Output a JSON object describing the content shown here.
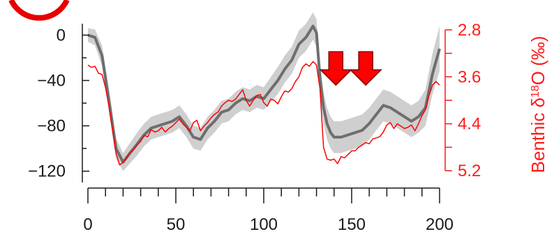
{
  "chart_data": {
    "type": "line",
    "x": {
      "ticks": [
        0,
        50,
        100,
        150,
        200
      ],
      "tick_labels": [
        "0",
        "50",
        "100",
        "150",
        "200"
      ],
      "range": [
        0,
        200
      ],
      "minor_step": 10
    },
    "y_left": {
      "ticks": [
        0,
        -40,
        -80,
        -120
      ],
      "tick_labels": [
        "0",
        "−40",
        "−80",
        "−120"
      ],
      "range": [
        -130,
        15
      ],
      "minor_step": 20
    },
    "y_right": {
      "label_prefix": "Benthic δ",
      "label_sup": "18",
      "label_suffix": "O (‰)",
      "ticks": [
        2.8,
        3.6,
        4.4,
        5.2
      ],
      "tick_labels": [
        "2.8",
        "3.6",
        "4.4",
        "5.2"
      ],
      "range": [
        2.6,
        5.4
      ],
      "reversed": true,
      "minor_step": 0.4
    },
    "series": [
      {
        "axis": "left",
        "color": "#6e6e6e",
        "band_color": "#cfcfcf",
        "points": [
          [
            0,
            0
          ],
          [
            4,
            -2
          ],
          [
            8,
            -18
          ],
          [
            12,
            -58
          ],
          [
            16,
            -100
          ],
          [
            20,
            -112
          ],
          [
            24,
            -104
          ],
          [
            28,
            -96
          ],
          [
            32,
            -88
          ],
          [
            36,
            -82
          ],
          [
            40,
            -80
          ],
          [
            44,
            -78
          ],
          [
            48,
            -76
          ],
          [
            52,
            -72
          ],
          [
            56,
            -80
          ],
          [
            60,
            -90
          ],
          [
            64,
            -92
          ],
          [
            68,
            -82
          ],
          [
            72,
            -76
          ],
          [
            76,
            -68
          ],
          [
            80,
            -66
          ],
          [
            84,
            -60
          ],
          [
            88,
            -56
          ],
          [
            92,
            -58
          ],
          [
            96,
            -54
          ],
          [
            100,
            -56
          ],
          [
            104,
            -48
          ],
          [
            108,
            -40
          ],
          [
            112,
            -30
          ],
          [
            116,
            -22
          ],
          [
            120,
            -8
          ],
          [
            124,
            -2
          ],
          [
            128,
            8
          ],
          [
            130,
            2
          ],
          [
            132,
            -38
          ],
          [
            134,
            -64
          ],
          [
            136,
            -78
          ],
          [
            138,
            -86
          ],
          [
            140,
            -90
          ],
          [
            144,
            -90
          ],
          [
            148,
            -88
          ],
          [
            152,
            -86
          ],
          [
            156,
            -84
          ],
          [
            160,
            -78
          ],
          [
            164,
            -70
          ],
          [
            168,
            -62
          ],
          [
            172,
            -64
          ],
          [
            176,
            -68
          ],
          [
            180,
            -72
          ],
          [
            184,
            -76
          ],
          [
            188,
            -72
          ],
          [
            192,
            -64
          ],
          [
            196,
            -34
          ],
          [
            200,
            -12
          ]
        ],
        "band_halfwidth": [
          6,
          7,
          9,
          10,
          9,
          8,
          9,
          10,
          10,
          10,
          10,
          10,
          10,
          10,
          10,
          10,
          10,
          10,
          10,
          10,
          10,
          10,
          10,
          10,
          10,
          10,
          11,
          12,
          12,
          12,
          12,
          12,
          12,
          12,
          14,
          14,
          14,
          14,
          14,
          14,
          14,
          14,
          14,
          14,
          14,
          14,
          14,
          14,
          14,
          14,
          14,
          16,
          18,
          20
        ]
      },
      {
        "axis": "right",
        "color": "#ff0000",
        "points": [
          [
            0,
            3.4
          ],
          [
            2,
            3.44
          ],
          [
            4,
            3.42
          ],
          [
            6,
            3.54
          ],
          [
            8,
            3.56
          ],
          [
            10,
            3.78
          ],
          [
            12,
            4.1
          ],
          [
            14,
            4.5
          ],
          [
            16,
            4.9
          ],
          [
            18,
            5.1
          ],
          [
            20,
            5.06
          ],
          [
            22,
            4.98
          ],
          [
            24,
            4.88
          ],
          [
            26,
            4.84
          ],
          [
            28,
            4.76
          ],
          [
            30,
            4.7
          ],
          [
            32,
            4.6
          ],
          [
            34,
            4.62
          ],
          [
            36,
            4.5
          ],
          [
            38,
            4.54
          ],
          [
            40,
            4.52
          ],
          [
            42,
            4.46
          ],
          [
            44,
            4.54
          ],
          [
            46,
            4.48
          ],
          [
            48,
            4.44
          ],
          [
            50,
            4.38
          ],
          [
            52,
            4.32
          ],
          [
            54,
            4.4
          ],
          [
            56,
            4.46
          ],
          [
            58,
            4.52
          ],
          [
            60,
            4.38
          ],
          [
            62,
            4.34
          ],
          [
            64,
            4.52
          ],
          [
            66,
            4.44
          ],
          [
            68,
            4.38
          ],
          [
            70,
            4.3
          ],
          [
            72,
            4.24
          ],
          [
            74,
            4.2
          ],
          [
            76,
            4.1
          ],
          [
            78,
            4.04
          ],
          [
            80,
            4.0
          ],
          [
            82,
            4.02
          ],
          [
            84,
            3.98
          ],
          [
            86,
            3.9
          ],
          [
            88,
            3.82
          ],
          [
            90,
            4.0
          ],
          [
            92,
            4.1
          ],
          [
            94,
            4.0
          ],
          [
            96,
            3.92
          ],
          [
            98,
            3.9
          ],
          [
            100,
            4.04
          ],
          [
            102,
            4.1
          ],
          [
            104,
            3.98
          ],
          [
            106,
            4.0
          ],
          [
            108,
            4.06
          ],
          [
            110,
            3.94
          ],
          [
            112,
            3.84
          ],
          [
            114,
            3.86
          ],
          [
            116,
            3.8
          ],
          [
            118,
            3.68
          ],
          [
            120,
            3.6
          ],
          [
            122,
            3.44
          ],
          [
            124,
            3.38
          ],
          [
            126,
            3.42
          ],
          [
            128,
            3.34
          ],
          [
            130,
            3.4
          ],
          [
            132,
            3.8
          ],
          [
            134,
            4.8
          ],
          [
            136,
            5.0
          ],
          [
            138,
            5.02
          ],
          [
            140,
            5.0
          ],
          [
            142,
            5.08
          ],
          [
            144,
            4.96
          ],
          [
            146,
            4.98
          ],
          [
            148,
            4.92
          ],
          [
            150,
            4.86
          ],
          [
            152,
            4.86
          ],
          [
            154,
            4.8
          ],
          [
            156,
            4.76
          ],
          [
            158,
            4.72
          ],
          [
            160,
            4.74
          ],
          [
            162,
            4.66
          ],
          [
            164,
            4.64
          ],
          [
            166,
            4.62
          ],
          [
            168,
            4.54
          ],
          [
            170,
            4.42
          ],
          [
            172,
            4.38
          ],
          [
            174,
            4.48
          ],
          [
            176,
            4.4
          ],
          [
            178,
            4.44
          ],
          [
            180,
            4.48
          ],
          [
            182,
            4.46
          ],
          [
            184,
            4.42
          ],
          [
            186,
            4.52
          ],
          [
            188,
            4.4
          ],
          [
            190,
            4.26
          ],
          [
            192,
            4.16
          ],
          [
            194,
            3.92
          ],
          [
            196,
            3.74
          ],
          [
            198,
            3.68
          ],
          [
            200,
            3.74
          ]
        ]
      }
    ],
    "annotations": [
      {
        "type": "arrow-down",
        "x": 141,
        "y_top": -22,
        "color": "#ff0000"
      },
      {
        "type": "arrow-down",
        "x": 158,
        "y_top": -22,
        "color": "#ff0000"
      }
    ]
  },
  "colors": {
    "left_axis": "#1a1a1a",
    "right_axis": "#ff1a1a",
    "logo_ring": "#e60000"
  }
}
